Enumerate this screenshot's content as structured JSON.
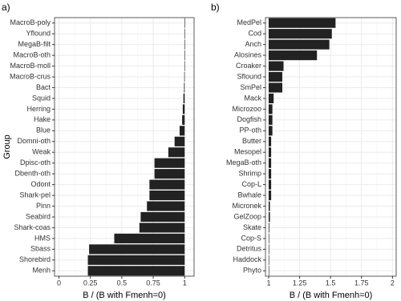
{
  "chart_data": [
    {
      "type": "bar",
      "orientation": "horizontal",
      "title": "a)",
      "x_label": "B / (B with Fmenh=0)",
      "y_label": "Group",
      "categories": [
        "MacroB-poly",
        "Yflound",
        "MegaB-filt",
        "MacroB-oth",
        "MacroB-moll",
        "MacroB-crus",
        "Bact",
        "Squid",
        "Herring",
        "Hake",
        "Blue",
        "Domni-oth",
        "Weak",
        "Dpisc-oth",
        "Dbenth-oth",
        "Odont",
        "Shark-pel",
        "Pinn",
        "Seabird",
        "Shark-coas",
        "HMS",
        "Sbass",
        "Shorebird",
        "Menh"
      ],
      "values": [
        1.0,
        0.999,
        0.999,
        0.999,
        0.998,
        0.997,
        0.995,
        0.99,
        0.985,
        0.98,
        0.96,
        0.92,
        0.87,
        0.76,
        0.76,
        0.72,
        0.72,
        0.7,
        0.65,
        0.64,
        0.44,
        0.24,
        0.23,
        0.23
      ],
      "baseline": 1,
      "color": "#222222",
      "xlim": [
        -0.035,
        1.075
      ],
      "xticks": [
        0,
        0.25,
        0.5,
        0.75,
        1
      ],
      "grid": true
    },
    {
      "type": "bar",
      "orientation": "horizontal",
      "title": "b)",
      "x_label": "B / (B with Fmenh=0)",
      "categories": [
        "MedPel",
        "Cod",
        "Anch",
        "Alosines",
        "Croaker",
        "Sflound",
        "SmPel",
        "Mack",
        "Microzoo",
        "Dogfish",
        "PP-oth",
        "Butter",
        "Mesopel",
        "MegaB-oth",
        "Shrimp",
        "Cop-L",
        "Bwhale",
        "Micronek",
        "GelZoop",
        "Skate",
        "Cop-S",
        "Detritus",
        "Haddock",
        "Phyto"
      ],
      "values": [
        1.54,
        1.51,
        1.49,
        1.39,
        1.12,
        1.11,
        1.11,
        1.04,
        1.03,
        1.03,
        1.03,
        1.02,
        1.02,
        1.02,
        1.02,
        1.02,
        1.02,
        1.01,
        1.01,
        1.005,
        1.003,
        1.002,
        1.001,
        1.001
      ],
      "baseline": 1,
      "color": "#222222",
      "xlim": [
        0.974,
        2.03
      ],
      "xticks": [
        1,
        1.25,
        1.5,
        1.75,
        2
      ],
      "grid": true
    }
  ]
}
